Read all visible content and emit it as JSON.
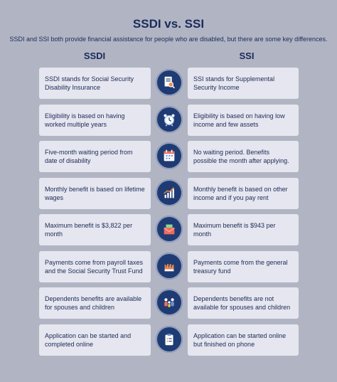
{
  "header": {
    "title": "SSDI vs. SSI",
    "subtitle": "SSDI and SSI both provide financial assistance for people who are disabled, but there are some key differences."
  },
  "columns": {
    "left": "SSDI",
    "right": "SSI"
  },
  "rows": [
    {
      "icon": "magnifier-document-icon",
      "ssdi": "SSDI stands for Social Security Disability Insurance",
      "ssi": "SSI stands for Supplemental Security Income"
    },
    {
      "icon": "alarm-clock-icon",
      "ssdi": "Eligibility is based on having worked multiple years",
      "ssi": "Eligibility is based on having low income and few assets"
    },
    {
      "icon": "calendar-icon",
      "ssdi": "Five-month waiting period from date of disability",
      "ssi": "No waiting period. Benefits possible the month after applying."
    },
    {
      "icon": "growth-chart-icon",
      "ssdi": "Monthly benefit is based on lifetime wages",
      "ssi": "Monthly benefit is based on other income and if you pay rent"
    },
    {
      "icon": "envelope-money-icon",
      "ssdi": "Maximum benefit is $3,822 per month",
      "ssi": "Maximum benefit is $943 per month"
    },
    {
      "icon": "hands-icon",
      "ssdi": "Payments come from payroll taxes and the Social Security Trust Fund",
      "ssi": "Payments come from the general treasury fund"
    },
    {
      "icon": "family-icon",
      "ssdi": "Dependents benefits are available for spouses and children",
      "ssi": "Dependents benefits are not available for spouses and children"
    },
    {
      "icon": "clipboard-icon",
      "ssdi": "Application can be started and completed online",
      "ssi": "Application can be started online but finished on phone"
    }
  ],
  "colors": {
    "background": "#b1b5c3",
    "card": "#e5e6ef",
    "navy": "#1f3b73",
    "text": "#1c2a56"
  }
}
